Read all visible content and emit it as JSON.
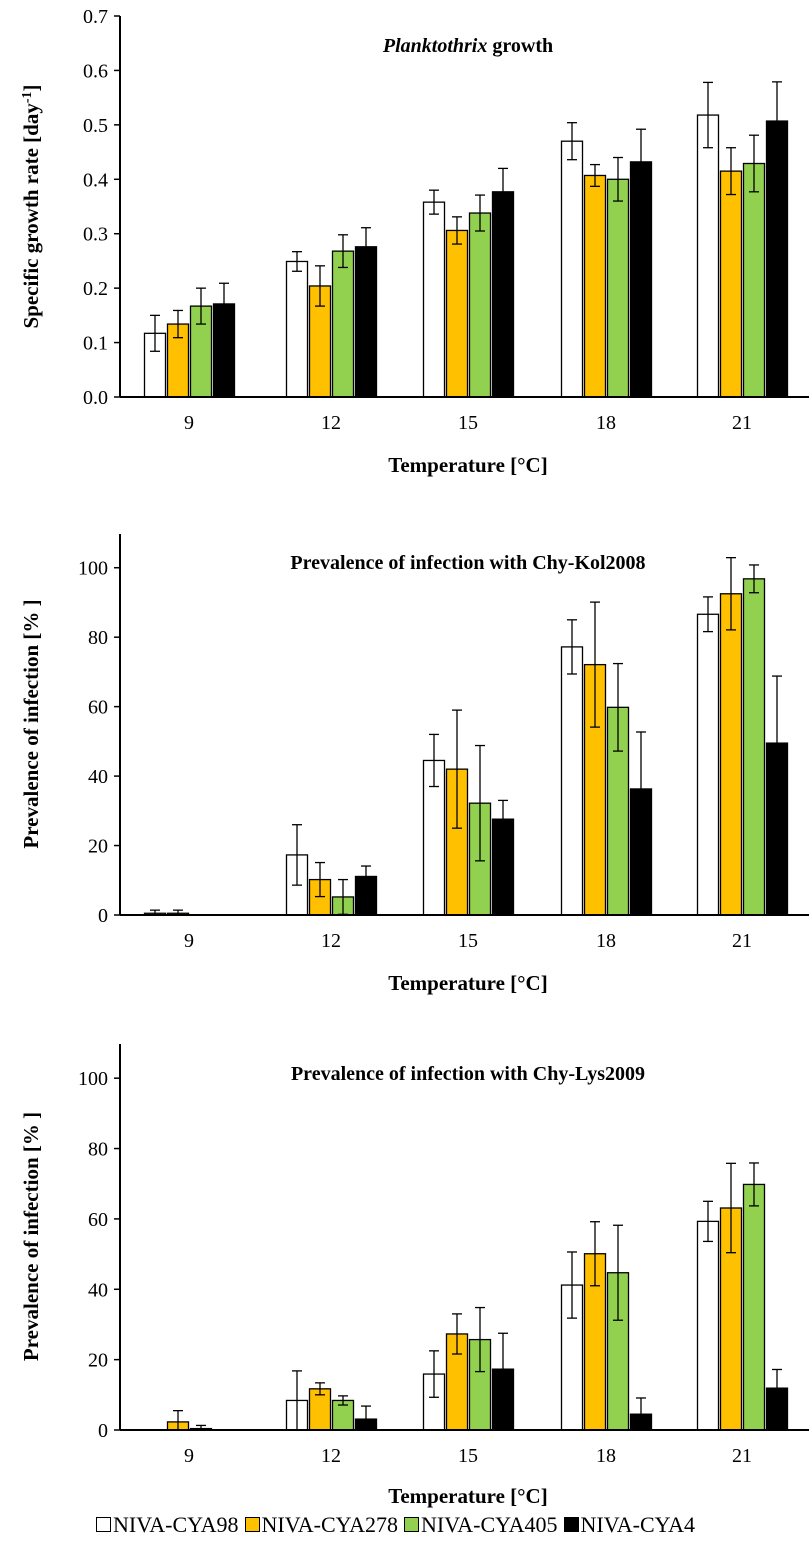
{
  "colors": {
    "NIVA-CYA98": "#ffffff",
    "NIVA-CYA278": "#ffc000",
    "NIVA-CYA405": "#92d050",
    "NIVA-CYA4": "#000000"
  },
  "legend": [
    {
      "name": "NIVA-CYA98",
      "color": "#ffffff"
    },
    {
      "name": "NIVA-CYA278",
      "color": "#ffc000"
    },
    {
      "name": "NIVA-CYA405",
      "color": "#92d050"
    },
    {
      "name": "NIVA-CYA4",
      "color": "#000000"
    }
  ],
  "chart_data": [
    {
      "type": "bar",
      "title_italic": "Planktothrix",
      "title": " growth",
      "xlabel": "Temperature [°C]",
      "ylabel": "Specific growth rate [day",
      "ylabel_sup": "-1",
      "ylabel_end": "]",
      "ylim": [
        0,
        0.7
      ],
      "yticks": [
        "0.0",
        "0.1",
        "0.2",
        "0.3",
        "0.4",
        "0.5",
        "0.6",
        "0.7"
      ],
      "categories": [
        "9",
        "12",
        "15",
        "18",
        "21"
      ],
      "series": [
        {
          "name": "NIVA-CYA98",
          "values": [
            0.117,
            0.249,
            0.358,
            0.47,
            0.518
          ],
          "errors": [
            0.033,
            0.018,
            0.022,
            0.034,
            0.06
          ]
        },
        {
          "name": "NIVA-CYA278",
          "values": [
            0.134,
            0.204,
            0.306,
            0.407,
            0.415
          ],
          "errors": [
            0.025,
            0.037,
            0.025,
            0.02,
            0.043
          ]
        },
        {
          "name": "NIVA-CYA405",
          "values": [
            0.167,
            0.268,
            0.338,
            0.4,
            0.429
          ],
          "errors": [
            0.033,
            0.03,
            0.033,
            0.04,
            0.052
          ]
        },
        {
          "name": "NIVA-CYA4",
          "values": [
            0.171,
            0.276,
            0.377,
            0.432,
            0.507
          ],
          "errors": [
            0.038,
            0.035,
            0.043,
            0.06,
            0.072
          ]
        }
      ]
    },
    {
      "type": "bar",
      "title": "Prevalence of infection with Chy-Kol2008",
      "xlabel": "Temperature [°C]",
      "ylabel": "Prevalence of  infection [% ]",
      "ylim": [
        0,
        110
      ],
      "yticks": [
        "0",
        "20",
        "40",
        "60",
        "80",
        "100"
      ],
      "categories": [
        "9",
        "12",
        "15",
        "18",
        "21"
      ],
      "series": [
        {
          "name": "NIVA-CYA98",
          "values": [
            0.5,
            17.3,
            44.5,
            77.2,
            86.6
          ],
          "errors": [
            0.9,
            8.7,
            7.5,
            7.8,
            5.0
          ]
        },
        {
          "name": "NIVA-CYA278",
          "values": [
            0.5,
            10.2,
            42.0,
            72.1,
            92.5
          ],
          "errors": [
            0.9,
            4.9,
            17.0,
            18.0,
            10.4
          ]
        },
        {
          "name": "NIVA-CYA405",
          "values": [
            0,
            5.2,
            32.2,
            59.8,
            96.8
          ],
          "errors": [
            0,
            5.0,
            16.6,
            12.6,
            4.0
          ]
        },
        {
          "name": "NIVA-CYA4",
          "values": [
            0,
            11.1,
            27.6,
            36.3,
            49.5
          ],
          "errors": [
            0,
            3.0,
            5.4,
            16.4,
            19.3
          ]
        }
      ]
    },
    {
      "type": "bar",
      "title": "Prevalence of infection with Chy-Lys2009",
      "xlabel": "Temperature [°C]",
      "ylabel": "Prevalence of  infection [% ]",
      "ylim": [
        0,
        110
      ],
      "yticks": [
        "0",
        "20",
        "40",
        "60",
        "80",
        "100"
      ],
      "categories": [
        "9",
        "12",
        "15",
        "18",
        "21"
      ],
      "series": [
        {
          "name": "NIVA-CYA98",
          "values": [
            0,
            8.4,
            15.9,
            41.2,
            59.3
          ],
          "errors": [
            0,
            8.4,
            6.6,
            9.4,
            5.7
          ]
        },
        {
          "name": "NIVA-CYA278",
          "values": [
            2.3,
            11.7,
            27.3,
            50.1,
            63.1
          ],
          "errors": [
            3.2,
            1.7,
            5.7,
            9.1,
            12.7
          ]
        },
        {
          "name": "NIVA-CYA405",
          "values": [
            0.4,
            8.4,
            25.7,
            44.7,
            69.8
          ],
          "errors": [
            0.9,
            1.3,
            9.1,
            13.5,
            6.1
          ]
        },
        {
          "name": "NIVA-CYA4",
          "values": [
            0,
            3.1,
            17.3,
            4.5,
            11.9
          ],
          "errors": [
            0,
            3.7,
            10.2,
            4.6,
            5.3
          ]
        }
      ]
    }
  ]
}
